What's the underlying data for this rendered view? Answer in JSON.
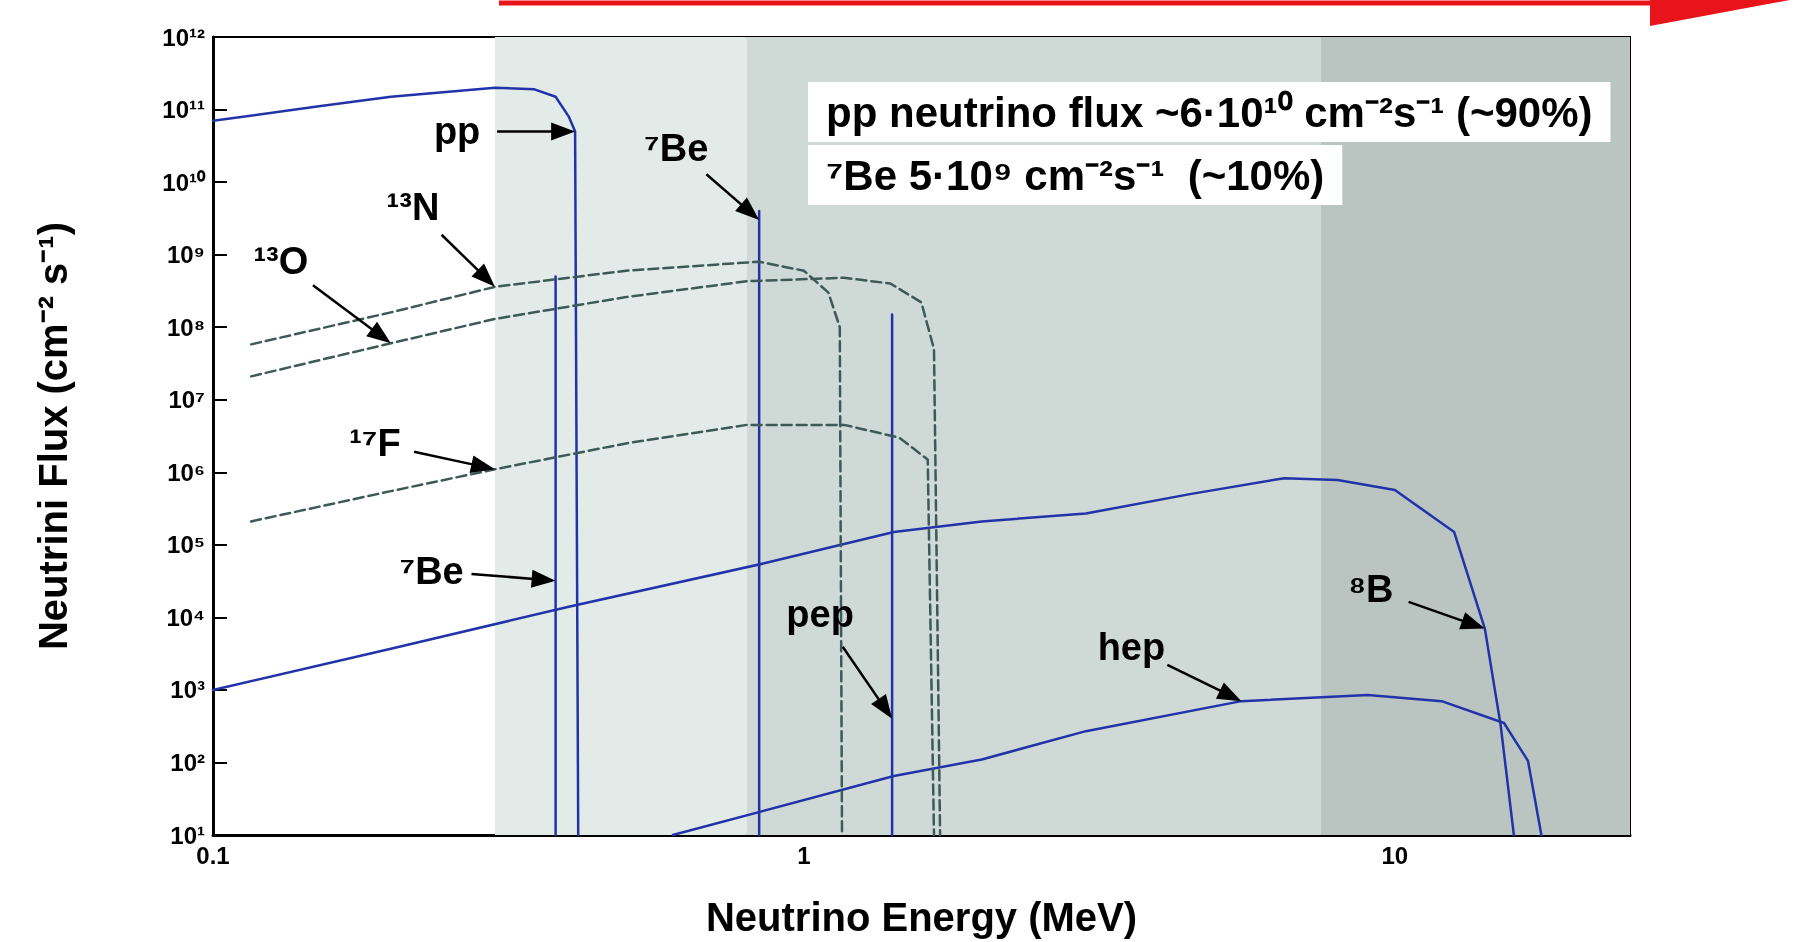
{
  "chart_data": {
    "type": "line",
    "xlabel": "Neutrino Energy (MeV)",
    "ylabel": "Neutrini Flux (cm⁻² s⁻¹)",
    "log": "xy",
    "grid": false,
    "marker": "none",
    "line_style": "solid",
    "xlim": [
      0.1,
      25
    ],
    "xticks": [
      0.1,
      1,
      10
    ],
    "ylim": [
      10,
      1000000000000
    ],
    "yticks": [
      {
        "value": 10,
        "label": "10¹"
      },
      {
        "value": 100,
        "label": "10²"
      },
      {
        "value": 1000,
        "label": "10³"
      },
      {
        "value": 10000,
        "label": "10⁴"
      },
      {
        "value": 100000,
        "label": "10⁵"
      },
      {
        "value": 1000000,
        "label": "10⁶"
      },
      {
        "value": 10000000,
        "label": "10⁷"
      },
      {
        "value": 100000000,
        "label": "10⁸"
      },
      {
        "value": 1000000000,
        "label": "10⁹"
      },
      {
        "value": 10000000000,
        "label": "10¹⁰"
      },
      {
        "value": 100000000000,
        "label": "10¹¹"
      },
      {
        "value": 1000000000000,
        "label": "10¹²"
      }
    ],
    "bands": [
      {
        "axis": "x",
        "from": 0.3,
        "to": 0.8,
        "color": "#e2ebe8"
      },
      {
        "axis": "x",
        "from": 0.8,
        "to": 7.5,
        "color": "#cfdad7"
      },
      {
        "axis": "x",
        "from": 7.5,
        "to": 25,
        "color": "#bac5c2"
      }
    ],
    "series": [
      {
        "color": "#2233aa",
        "x": [
          0.1,
          0.15,
          0.2,
          0.3,
          0.35,
          0.38,
          0.4,
          0.41,
          0.415
        ],
        "values": [
          70000000000,
          110000000000,
          150000000000,
          200000000000,
          190000000000,
          150000000000,
          80000000000,
          50000000000,
          10
        ]
      },
      {
        "color": "#2233aa",
        "x": [
          0.38,
          0.38
        ],
        "values": [
          10,
          500000000
        ]
      },
      {
        "color": "#2233aa",
        "x": [
          0.84,
          0.84
        ],
        "values": [
          10,
          4000000000
        ]
      },
      {
        "color": "#2233aa",
        "x": [
          1.41,
          1.41
        ],
        "values": [
          10,
          150000000
        ]
      },
      {
        "color": "#2233aa",
        "x": [
          0.1,
          0.2,
          0.4,
          0.86,
          1.42,
          2,
          3,
          4.5,
          6.5,
          8,
          10,
          12.6,
          14.2,
          15.1,
          15.9
        ],
        "values": [
          1000,
          3700,
          14000,
          56000,
          150000,
          210000,
          270000,
          500000,
          830000,
          780000,
          570000,
          150000,
          7000,
          330,
          10
        ]
      },
      {
        "color": "#2233aa",
        "x": [
          0.6,
          1.42,
          2,
          3,
          5.5,
          9,
          12,
          15.3,
          16.8,
          17.7
        ],
        "values": [
          10,
          65,
          110,
          270,
          700,
          850,
          700,
          350,
          105,
          10
        ]
      },
      {
        "color": "#3d5a58",
        "line_style": "dashed",
        "x": [
          0.116,
          0.2,
          0.3,
          0.5,
          0.84,
          1,
          1.1,
          1.15,
          1.16
        ],
        "values": [
          58000000,
          160000000,
          360000000,
          600000000,
          800000000,
          600000000,
          300000000,
          100000000,
          10
        ]
      },
      {
        "color": "#3d5a58",
        "line_style": "dashed",
        "x": [
          0.116,
          0.2,
          0.3,
          0.5,
          0.8,
          1.17,
          1.4,
          1.58,
          1.66,
          1.7
        ],
        "values": [
          21000000,
          60000000,
          130000000,
          260000000,
          430000000,
          480000000,
          400000000,
          220000000,
          50000000,
          10
        ]
      },
      {
        "color": "#3d5a58",
        "line_style": "dashed",
        "x": [
          0.116,
          0.2,
          0.3,
          0.5,
          0.8,
          1.17,
          1.45,
          1.62,
          1.66
        ],
        "values": [
          210000,
          550000,
          1100000,
          2500000,
          4500000,
          4500000,
          3000000,
          1500000,
          10
        ]
      }
    ],
    "annotations": [
      {
        "text": "pp",
        "x": 0.41,
        "y": 50000000000
      },
      {
        "text": "⁷Be",
        "x": 0.84,
        "y": 3000000000
      },
      {
        "text": "¹³N",
        "x": 0.3,
        "y": 360000000
      },
      {
        "text": "¹³O",
        "x": 0.2,
        "y": 60000000
      },
      {
        "text": "¹⁷F",
        "x": 0.3,
        "y": 1100000
      },
      {
        "text": "⁷Be",
        "x": 0.38,
        "y": 32000
      },
      {
        "text": "pep",
        "x": 1.41,
        "y": 400
      },
      {
        "text": "hep",
        "x": 5.5,
        "y": 700
      },
      {
        "text": "⁸B",
        "x": 14.2,
        "y": 7000
      },
      "pp neutrino flux ~6·10¹⁰ cm⁻²s⁻¹ (~90%)",
      "⁷Be 5·10⁹ cm⁻²s⁻¹  (~10%)"
    ]
  }
}
